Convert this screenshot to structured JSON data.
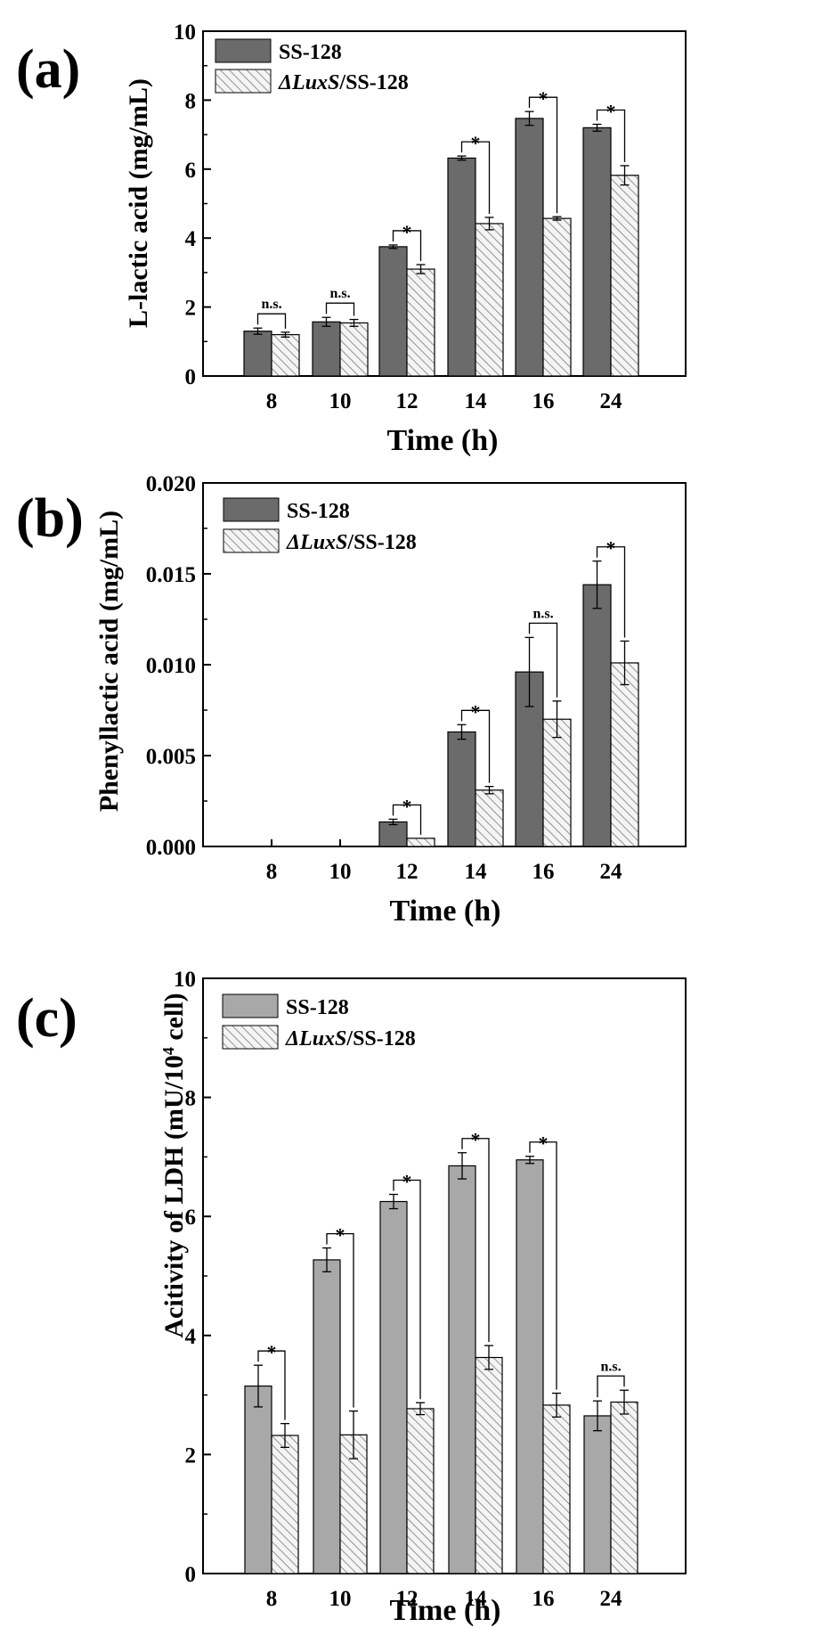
{
  "colors": {
    "bar_a_control": "#6b6b6b",
    "bar_c_control": "#a8a8a8",
    "hatch_fill": "#f4f4f4",
    "hatch_line": "#7a7a7a",
    "axis": "#000000"
  },
  "chart_data": [
    {
      "type": "bar",
      "panel_label": "(a)",
      "categories": [
        "8",
        "10",
        "12",
        "14",
        "16",
        "24"
      ],
      "xlabel": "Time (h)",
      "ylabel": "L-lactic acid (mg/mL)",
      "ylim": [
        0,
        10
      ],
      "yticks": [
        "0",
        "2",
        "4",
        "6",
        "8",
        "10"
      ],
      "legend_position": "top-left",
      "series": [
        {
          "name": "SS-128",
          "values": [
            1.3,
            1.57,
            3.75,
            6.32,
            7.47,
            7.2
          ],
          "errors": [
            0.09,
            0.13,
            0.05,
            0.06,
            0.2,
            0.1
          ]
        },
        {
          "name_prefix": "ΔLuxS",
          "name_suffix": "/SS-128",
          "values": [
            1.2,
            1.54,
            3.1,
            4.42,
            4.57,
            5.82
          ],
          "errors": [
            0.07,
            0.1,
            0.13,
            0.18,
            0.05,
            0.28
          ]
        }
      ],
      "significance": [
        "n.s.",
        "n.s.",
        "*",
        "*",
        "*",
        "*"
      ]
    },
    {
      "type": "bar",
      "panel_label": "(b)",
      "categories": [
        "8",
        "10",
        "12",
        "14",
        "16",
        "24"
      ],
      "xlabel": "Time (h)",
      "ylabel": "Phenyllactic acid (mg/mL)",
      "ylim": [
        0,
        0.02
      ],
      "yticks": [
        "0.000",
        "0.005",
        "0.010",
        "0.015",
        "0.020"
      ],
      "legend_position": "top-left",
      "series": [
        {
          "name": "SS-128",
          "values": [
            0,
            0,
            0.00135,
            0.0063,
            0.0096,
            0.0144
          ],
          "errors": [
            0,
            0,
            0.00015,
            0.0004,
            0.0019,
            0.0013
          ]
        },
        {
          "name_prefix": "ΔLuxS",
          "name_suffix": "/SS-128",
          "values": [
            0,
            0,
            0.00045,
            0.0031,
            0.007,
            0.0101
          ],
          "errors": [
            0,
            0,
            0,
            0.0002,
            0.001,
            0.0012
          ]
        }
      ],
      "significance": [
        "",
        "",
        "*",
        "*",
        "n.s.",
        "*"
      ]
    },
    {
      "type": "bar",
      "panel_label": "(c)",
      "categories": [
        "8",
        "10",
        "12",
        "14",
        "16",
        "24"
      ],
      "xlabel": "Time (h)",
      "ylabel_main": "Acitivity of LDH (mU/10",
      "ylabel_sup": "4",
      "ylabel_end": " cell)",
      "ylim": [
        0,
        10
      ],
      "yticks": [
        "0",
        "2",
        "4",
        "6",
        "8",
        "10"
      ],
      "legend_position": "top-left",
      "series": [
        {
          "name": "SS-128",
          "values": [
            3.15,
            5.27,
            6.25,
            6.85,
            6.95,
            2.65
          ],
          "errors": [
            0.35,
            0.2,
            0.12,
            0.22,
            0.06,
            0.25
          ]
        },
        {
          "name_prefix": "ΔLuxS",
          "name_suffix": "/SS-128",
          "values": [
            2.32,
            2.33,
            2.77,
            3.63,
            2.83,
            2.88
          ],
          "errors": [
            0.2,
            0.4,
            0.1,
            0.2,
            0.2,
            0.2
          ]
        }
      ],
      "significance": [
        "*",
        "*",
        "*",
        "*",
        "*",
        "n.s."
      ]
    }
  ]
}
